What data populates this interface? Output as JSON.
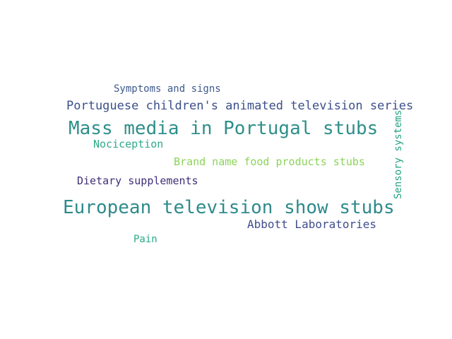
{
  "words": [
    {
      "text": "Symptoms and signs",
      "color": "#3e5a8c"
    },
    {
      "text": "Portuguese children's animated television series",
      "color": "#3b4f8a"
    },
    {
      "text": "Mass media in Portugal stubs",
      "color": "#2e8f8a"
    },
    {
      "text": "Nociception",
      "color": "#2fa98b"
    },
    {
      "text": "Brand name food products stubs",
      "color": "#8cd35a"
    },
    {
      "text": "Dietary supplements",
      "color": "#3f2f7a"
    },
    {
      "text": "European television show stubs",
      "color": "#2f8a8c"
    },
    {
      "text": "Abbott Laboratories",
      "color": "#404d8c"
    },
    {
      "text": "Pain",
      "color": "#2aab86"
    },
    {
      "text": "Sensory systems",
      "color": "#26a383"
    }
  ]
}
